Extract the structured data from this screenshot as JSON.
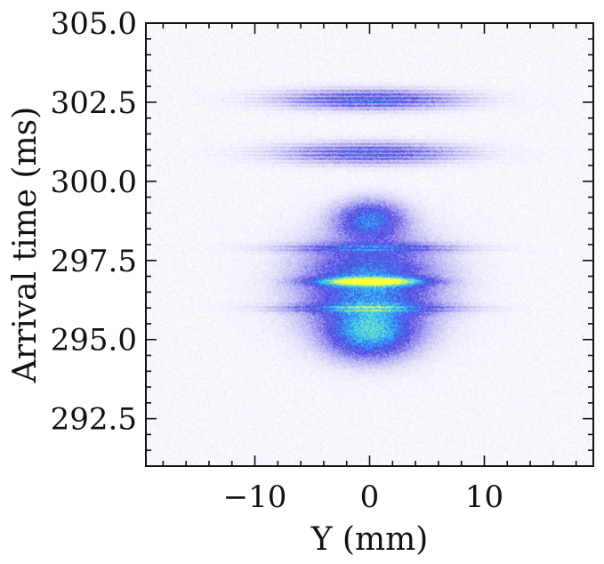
{
  "chart_data": {
    "type": "heatmap",
    "title": "",
    "xlabel": "Y (mm)",
    "ylabel": "Arrival time (ms)",
    "xlim": [
      -19.5,
      19.5
    ],
    "ylim": [
      291.0,
      305.0
    ],
    "xticks": [
      -10,
      0,
      10
    ],
    "xtick_labels": [
      "−10",
      "0",
      "10"
    ],
    "yticks": [
      292.5,
      295.0,
      297.5,
      300.0,
      302.5,
      305.0
    ],
    "ytick_labels": [
      "292.5",
      "295.0",
      "297.5",
      "300.0",
      "302.5",
      "305.0"
    ],
    "grid": false,
    "colormap": [
      "#ffffff",
      "#4b3fe0",
      "#2fd6ff",
      "#ffff3c"
    ],
    "features": [
      {
        "kind": "cloud",
        "center": [
          0,
          296.7
        ],
        "width": 12.0,
        "height": 3.2,
        "peak": 0.55
      },
      {
        "kind": "cloud",
        "center": [
          0,
          295.2
        ],
        "width": 7.5,
        "height": 1.6,
        "peak": 0.55
      },
      {
        "kind": "cloud",
        "center": [
          0,
          298.8
        ],
        "width": 6.0,
        "height": 1.2,
        "peak": 0.45
      },
      {
        "kind": "band",
        "center": [
          0,
          296.85
        ],
        "width": 9.0,
        "height": 0.35,
        "peak": 0.95
      },
      {
        "kind": "fringes",
        "center": [
          0,
          302.6
        ],
        "width": 13.0,
        "height": 0.7,
        "peak": 0.5
      },
      {
        "kind": "fringes",
        "center": [
          0,
          300.9
        ],
        "width": 13.0,
        "height": 0.75,
        "peak": 0.45
      },
      {
        "kind": "fringes",
        "center": [
          0,
          297.9
        ],
        "width": 13.0,
        "height": 0.35,
        "peak": 0.35
      },
      {
        "kind": "fringes",
        "center": [
          0,
          296.0
        ],
        "width": 13.0,
        "height": 0.35,
        "peak": 0.4
      }
    ]
  }
}
